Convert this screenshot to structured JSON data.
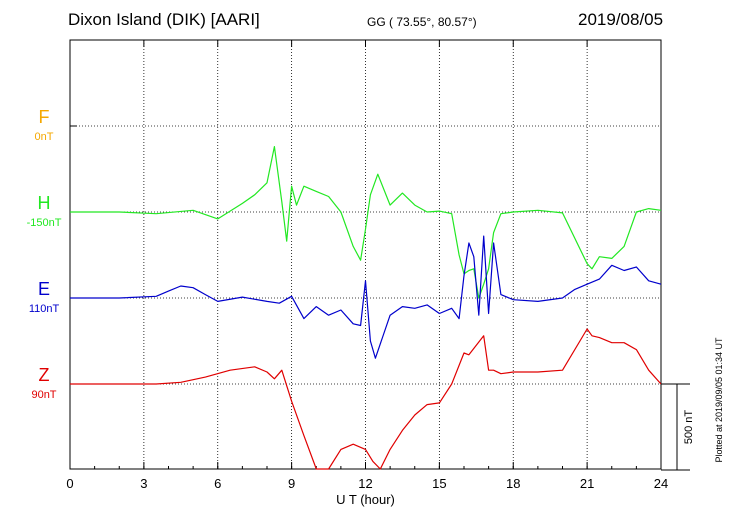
{
  "header": {
    "title": "Dixon Island (DIK)  [AARI]",
    "coords": "GG ( 73.55°,  80.57°)",
    "date": "2019/08/05"
  },
  "plotted_note": "Plotted at 2019/09/05 01:34  UT",
  "scale_bar_label": "500 nT",
  "chart_data": {
    "type": "line",
    "xlabel": "U T (hour)",
    "xlim": [
      0,
      24
    ],
    "x_ticks": [
      0,
      3,
      6,
      9,
      12,
      15,
      18,
      21,
      24
    ],
    "grid": "dotted",
    "scale_nt": 500,
    "series": [
      {
        "name": "F",
        "label": "0nT",
        "color": "#f5a800",
        "baseline_row": 1,
        "x": [],
        "y": []
      },
      {
        "name": "H",
        "label": "-150nT",
        "color": "#22e822",
        "baseline_row": 2,
        "x": [
          0,
          2,
          3.5,
          5,
          6,
          7,
          7.5,
          8,
          8.3,
          8.6,
          8.8,
          9.0,
          9.2,
          9.5,
          10,
          10.5,
          11,
          11.5,
          11.8,
          12.0,
          12.2,
          12.5,
          13,
          13.5,
          14,
          14.5,
          15,
          15.5,
          15.8,
          16.0,
          16.2,
          16.4,
          16.6,
          16.8,
          17.0,
          17.2,
          17.5,
          18,
          19,
          20,
          21,
          21.2,
          21.5,
          22,
          22.5,
          23,
          23.5,
          24
        ],
        "y": [
          0,
          0,
          -10,
          10,
          -40,
          50,
          100,
          170,
          380,
          60,
          -170,
          150,
          40,
          150,
          120,
          90,
          0,
          -200,
          -280,
          -100,
          100,
          220,
          40,
          110,
          40,
          0,
          5,
          -10,
          -250,
          -360,
          -340,
          -330,
          -500,
          -420,
          -330,
          -120,
          -10,
          0,
          10,
          -5,
          -300,
          -330,
          -260,
          -270,
          -200,
          0,
          20,
          10
        ]
      },
      {
        "name": "E",
        "label": "110nT",
        "color": "#0000cc",
        "baseline_row": 3,
        "x": [
          0,
          2,
          3.5,
          4,
          4.5,
          5,
          5.5,
          6,
          7,
          8,
          8.5,
          9,
          9.5,
          10,
          10.5,
          11,
          11.5,
          11.8,
          12.0,
          12.2,
          12.4,
          13,
          13.5,
          14,
          14.5,
          15,
          15.5,
          15.8,
          16.0,
          16.2,
          16.4,
          16.6,
          16.8,
          17.0,
          17.2,
          17.5,
          18,
          19,
          20,
          20.5,
          21,
          21.5,
          22,
          22.5,
          23,
          23.5,
          24
        ],
        "y": [
          0,
          0,
          10,
          40,
          70,
          60,
          20,
          -20,
          5,
          -20,
          -30,
          10,
          -120,
          -50,
          -100,
          -70,
          -150,
          -160,
          100,
          -250,
          -350,
          -100,
          -50,
          -60,
          -40,
          -90,
          -60,
          -120,
          130,
          320,
          240,
          -100,
          360,
          -90,
          320,
          20,
          -10,
          -20,
          0,
          50,
          80,
          110,
          190,
          160,
          180,
          100,
          80
        ]
      },
      {
        "name": "Z",
        "label": "90nT",
        "color": "#e00000",
        "baseline_row": 4,
        "x": [
          0,
          2,
          3.5,
          4.5,
          5.5,
          6.5,
          7.5,
          8,
          8.3,
          8.6,
          9,
          9.5,
          10,
          10.5,
          11,
          11.5,
          12,
          12.3,
          12.6,
          13,
          13.5,
          14,
          14.5,
          15,
          15.5,
          16,
          16.2,
          16.8,
          17.0,
          17.2,
          17.5,
          18,
          19,
          20,
          21,
          21.2,
          21.5,
          22,
          22.5,
          23,
          23.5,
          24
        ],
        "y": [
          0,
          0,
          0,
          10,
          40,
          80,
          100,
          70,
          30,
          80,
          -100,
          -300,
          -500,
          -520,
          -380,
          -350,
          -380,
          -450,
          -520,
          -380,
          -270,
          -180,
          -120,
          -110,
          0,
          180,
          170,
          280,
          80,
          80,
          60,
          70,
          70,
          80,
          320,
          280,
          270,
          240,
          240,
          200,
          80,
          0
        ]
      }
    ]
  }
}
